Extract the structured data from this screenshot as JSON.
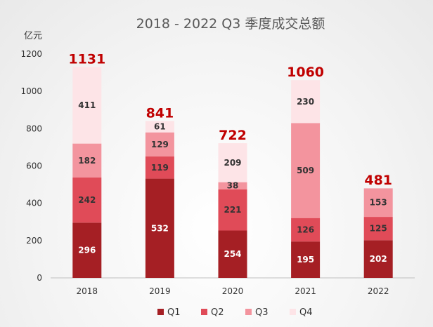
{
  "chart_data": {
    "type": "bar",
    "stacked": true,
    "title": "2018 - 2022 Q3 季度成交总额",
    "ylabel": "亿元",
    "xlabel": "",
    "ylim": [
      0,
      1200
    ],
    "yticks": [
      0,
      200,
      400,
      600,
      800,
      1000,
      1200
    ],
    "categories": [
      "2018",
      "2019",
      "2020",
      "2021",
      "2022"
    ],
    "series": [
      {
        "name": "Q1",
        "color": "#a51f24",
        "label_color": "#ffffff",
        "values": [
          296,
          532,
          254,
          195,
          202
        ]
      },
      {
        "name": "Q2",
        "color": "#e04b58",
        "label_color": "#333333",
        "values": [
          242,
          119,
          221,
          126,
          125
        ]
      },
      {
        "name": "Q3",
        "color": "#f3949e",
        "label_color": "#333333",
        "values": [
          182,
          129,
          38,
          509,
          153
        ]
      },
      {
        "name": "Q4",
        "color": "#fde4e7",
        "label_color": "#333333",
        "values": [
          411,
          61,
          209,
          230,
          null
        ]
      }
    ],
    "totals": [
      1131,
      841,
      722,
      1060,
      481
    ],
    "total_color": "#c00000",
    "grid": false,
    "legend_position": "bottom"
  }
}
